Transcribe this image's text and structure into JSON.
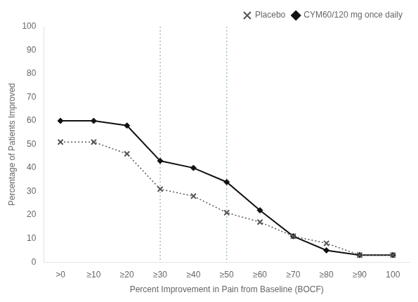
{
  "chart_data": {
    "type": "line",
    "categories": [
      ">0",
      "≥10",
      "≥20",
      "≥30",
      "≥40",
      "≥50",
      "≥60",
      "≥70",
      "≥80",
      "≥90",
      "100"
    ],
    "series": [
      {
        "name": "Placebo",
        "color": "#555555",
        "marker": "x",
        "line_style": "dotted",
        "values": [
          51,
          51,
          46,
          31,
          28,
          21,
          17,
          11,
          8,
          3,
          3
        ]
      },
      {
        "name": "CYM60/120 mg once daily",
        "color": "#111111",
        "marker": "diamond",
        "line_style": "solid",
        "values": [
          60,
          60,
          58,
          43,
          40,
          34,
          22,
          11,
          5,
          3,
          3
        ]
      }
    ],
    "xlabel": "Percent Improvement in Pain from Baseline (BOCF)",
    "ylabel": "Percentage of Patients Improved",
    "ylim": [
      0,
      100
    ],
    "yticks": [
      0,
      10,
      20,
      30,
      40,
      50,
      60,
      70,
      80,
      90,
      100
    ],
    "grid": false,
    "legend": "upper right",
    "vlines": [
      {
        "x": "≥30",
        "color": "#c090c0",
        "line_style": "dotted"
      },
      {
        "x": "≥50",
        "color": "#90c090",
        "line_style": "dotted"
      }
    ]
  }
}
